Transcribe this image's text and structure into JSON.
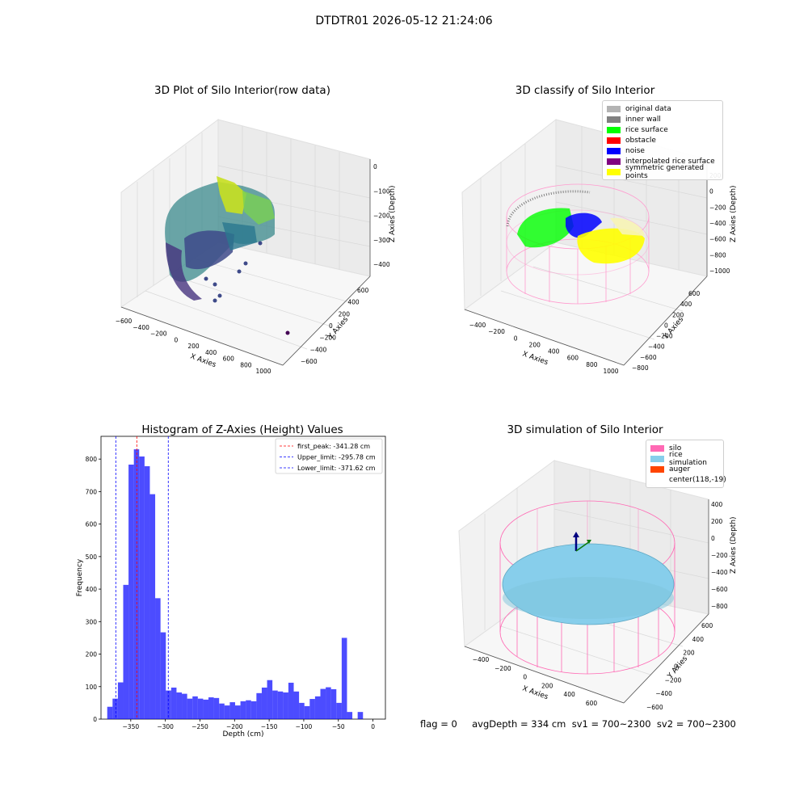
{
  "figure": {
    "suptitle": "DTDTR01 2026-05-12 21:24:06"
  },
  "panel_raw": {
    "title": "3D Plot of Silo Interior(row data)",
    "xlabel": "X Axies",
    "ylabel": "Y Axies",
    "zlabel": "Z Axies (Depth)",
    "xticks": [
      "−600",
      "−400",
      "−200",
      "0",
      "200",
      "400",
      "600",
      "800",
      "1000"
    ],
    "yticks": [
      "−600",
      "−400",
      "−200",
      "0",
      "200",
      "400",
      "600"
    ],
    "zticks": [
      "−400",
      "−300",
      "−200",
      "−100",
      "0"
    ],
    "colormap": "viridis"
  },
  "panel_classify": {
    "title": "3D classify of Silo Interior",
    "xlabel": "X Axies",
    "ylabel": "Y Axies",
    "zlabel": "Z Axies (Depth)",
    "xticks": [
      "−400",
      "−200",
      "0",
      "200",
      "400",
      "600",
      "800",
      "1000"
    ],
    "yticks": [
      "−800",
      "−600",
      "−400",
      "−200",
      "0",
      "200",
      "400",
      "600"
    ],
    "zticks": [
      "−1000",
      "−800",
      "−600",
      "−400",
      "−200",
      "0",
      "200"
    ],
    "legend_position": "upper-right",
    "legend": [
      {
        "label": "original data",
        "color": "#b3b3b3"
      },
      {
        "label": "inner wall",
        "color": "#808080"
      },
      {
        "label": "rice surface",
        "color": "#00ff00"
      },
      {
        "label": "obstacle",
        "color": "#ff0000"
      },
      {
        "label": "noise",
        "color": "#0000ff"
      },
      {
        "label": "interpolated rice surface",
        "color": "#800080"
      },
      {
        "label": "symmetric generated points",
        "color": "#ffff00"
      }
    ]
  },
  "panel_sim": {
    "title": "3D simulation of Silo Interior",
    "xlabel": "X Axies",
    "ylabel": "Y Axies",
    "zlabel": "Z Axies (Depth)",
    "xticks": [
      "−400",
      "−200",
      "0",
      "200",
      "400",
      "600"
    ],
    "yticks": [
      "−600",
      "−400",
      "−200",
      "0",
      "200",
      "400",
      "600"
    ],
    "zticks": [
      "−800",
      "−600",
      "−400",
      "−200",
      "0",
      "200",
      "400"
    ],
    "legend_position": "upper-right",
    "legend": [
      {
        "label": "silo",
        "color": "#ff69b4"
      },
      {
        "label": "rice simulation",
        "color": "#87ceeb"
      },
      {
        "label": "auger",
        "color": "#ff4500"
      },
      {
        "label": "center(118,-19)",
        "color": ""
      }
    ]
  },
  "footer": {
    "text": "flag = 0     avgDepth = 334 cm  sv1 = 700~2300  sv2 = 700~2300"
  },
  "chart_data": {
    "type": "bar",
    "title": "Histogram of Z-Axies (Height) Values",
    "xlabel": "Depth (cm)",
    "ylabel": "Frequency",
    "bar_color": "#0000ff",
    "xlim": [
      -393,
      18
    ],
    "ylim": [
      0,
      870
    ],
    "xticks": [
      -350,
      -300,
      -250,
      -200,
      -150,
      -100,
      -50,
      0
    ],
    "xtick_labels": [
      "−350",
      "−300",
      "−250",
      "−200",
      "−150",
      "−100",
      "−50",
      "0"
    ],
    "yticks": [
      0,
      100,
      200,
      300,
      400,
      500,
      600,
      700,
      800
    ],
    "bin_start": -384,
    "bin_width": 7.7,
    "values": [
      38,
      63,
      113,
      413,
      783,
      830,
      808,
      778,
      692,
      372,
      267,
      88,
      97,
      82,
      78,
      63,
      70,
      63,
      60,
      67,
      65,
      48,
      42,
      52,
      42,
      55,
      58,
      55,
      80,
      97,
      120,
      88,
      85,
      82,
      112,
      85,
      50,
      40,
      62,
      70,
      93,
      98,
      92,
      50,
      250,
      22,
      0,
      22
    ],
    "vlines": [
      {
        "x": -341.28,
        "color": "#ff0000",
        "label": "first_peak: -341.28 cm"
      },
      {
        "x": -295.78,
        "color": "#0000ff",
        "label": "Upper_limit: -295.78 cm"
      },
      {
        "x": -371.62,
        "color": "#0000ff",
        "label": "Lower_limit: -371.62 cm"
      }
    ],
    "legend_position": "top-right",
    "grid": false
  }
}
